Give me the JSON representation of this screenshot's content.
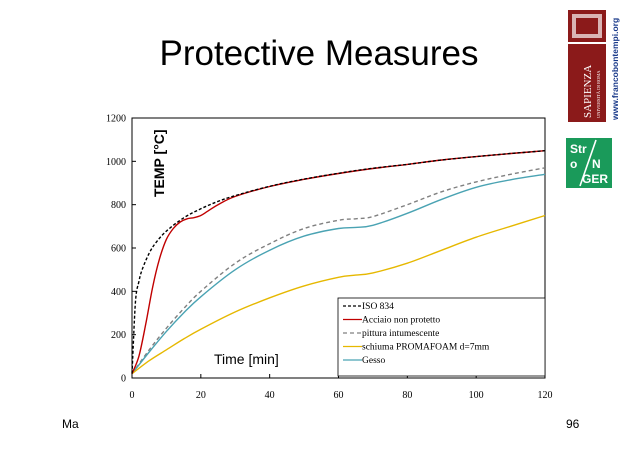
{
  "slide": {
    "title": "Protective Measures",
    "footer_left": "Ma",
    "page_number": "96",
    "website": "www.francobontempi.org",
    "university": "SAPIENZA",
    "university_sub": "UNIVERSITÀ DI ROMA",
    "badge": {
      "line1": "Str",
      "line2_a": "o",
      "line2_b": "N",
      "line3": "GER"
    }
  },
  "chart_data": {
    "type": "line",
    "ylabel": "TEMP [°C]",
    "xlabel": "Time [min]",
    "xlim": [
      0,
      120
    ],
    "ylim": [
      0,
      1200
    ],
    "xticks": [
      0,
      20,
      40,
      60,
      80,
      100,
      120
    ],
    "yticks": [
      0,
      200,
      400,
      600,
      800,
      1000,
      1200
    ],
    "grid": false,
    "legend_position": "bottom-right",
    "series": [
      {
        "name": "ISO 834",
        "color": "#000000",
        "dash": "3,2",
        "x": [
          0,
          1,
          2,
          3,
          5,
          7,
          10,
          15,
          20,
          25,
          30,
          40,
          50,
          60,
          70,
          80,
          90,
          100,
          110,
          120
        ],
        "y": [
          20,
          349,
          445,
          502,
          576,
          626,
          678,
          739,
          781,
          815,
          842,
          885,
          918,
          945,
          968,
          986,
          1006,
          1022,
          1036,
          1049
        ]
      },
      {
        "name": "Acciaio non protetto",
        "color": "#c00000",
        "dash": "",
        "x": [
          0,
          2,
          4,
          6,
          8,
          10,
          12,
          14,
          16,
          18,
          20,
          22,
          25,
          30,
          40,
          50,
          60,
          70,
          80,
          90,
          100,
          110,
          120
        ],
        "y": [
          20,
          100,
          250,
          420,
          550,
          640,
          690,
          720,
          735,
          740,
          750,
          770,
          800,
          838,
          884,
          917,
          944,
          967,
          986,
          1006,
          1022,
          1036,
          1049
        ]
      },
      {
        "name": "pittura intumescente",
        "color": "#808080",
        "dash": "4,3",
        "x": [
          0,
          5,
          10,
          15,
          20,
          30,
          40,
          50,
          60,
          65,
          70,
          80,
          90,
          100,
          110,
          120
        ],
        "y": [
          20,
          130,
          230,
          320,
          400,
          530,
          620,
          690,
          728,
          735,
          745,
          800,
          860,
          905,
          940,
          970
        ]
      },
      {
        "name": "schiuma PROMAFOAM d=7mm",
        "color": "#e6b800",
        "dash": "",
        "x": [
          0,
          5,
          10,
          15,
          20,
          30,
          40,
          50,
          60,
          65,
          70,
          80,
          90,
          100,
          110,
          120
        ],
        "y": [
          20,
          80,
          130,
          180,
          225,
          305,
          370,
          425,
          465,
          475,
          485,
          530,
          590,
          650,
          700,
          750
        ]
      },
      {
        "name": "Gesso",
        "color": "#4aa3b3",
        "dash": "",
        "x": [
          0,
          5,
          10,
          15,
          20,
          30,
          40,
          50,
          60,
          65,
          70,
          80,
          90,
          100,
          110,
          120
        ],
        "y": [
          20,
          120,
          215,
          300,
          375,
          500,
          590,
          655,
          690,
          695,
          705,
          760,
          825,
          880,
          915,
          940
        ]
      }
    ]
  }
}
